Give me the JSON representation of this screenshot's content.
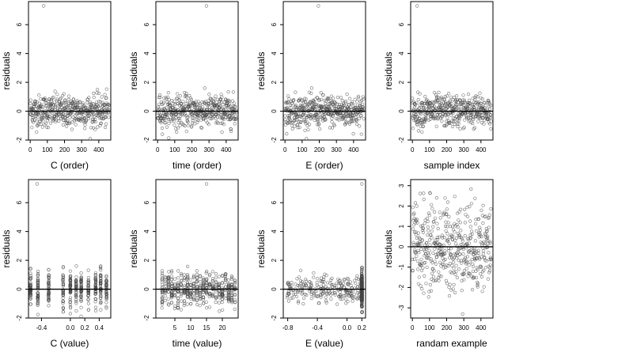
{
  "figure": {
    "residuals_label": "residuals",
    "panel_xlabels": [
      "C (order)",
      "time (order)",
      "E (order)",
      "sample index",
      "C (value)",
      "time (value)",
      "E (value)",
      "randam example"
    ]
  },
  "chart_data": [
    {
      "type": "scatter",
      "xlabel": "C (order)",
      "ylabel": "residuals",
      "xlim": [
        -10,
        470
      ],
      "ylim": [
        -2,
        7.6
      ],
      "xticks": [
        0,
        100,
        200,
        300,
        400
      ],
      "xticklabels": [
        "0",
        "100",
        "200",
        "300",
        "400"
      ],
      "yticks": [
        -2,
        0,
        2,
        4,
        6
      ],
      "yticklabels": [
        "-2",
        "0",
        "2",
        "4",
        "6"
      ],
      "hline": 0,
      "n_points": 460,
      "x_pattern": "index",
      "outliers": [
        {
          "x": 78,
          "y": 7.3
        }
      ]
    },
    {
      "type": "scatter",
      "xlabel": "time (order)",
      "ylabel": "residuals",
      "xlim": [
        -10,
        470
      ],
      "ylim": [
        -2,
        7.6
      ],
      "xticks": [
        0,
        100,
        200,
        300,
        400
      ],
      "xticklabels": [
        "0",
        "100",
        "200",
        "300",
        "400"
      ],
      "yticks": [
        -2,
        0,
        2,
        4,
        6
      ],
      "yticklabels": [
        "-2",
        "0",
        "2",
        "4",
        "6"
      ],
      "hline": 0,
      "n_points": 460,
      "x_pattern": "index",
      "outliers": [
        {
          "x": 285,
          "y": 7.3
        }
      ]
    },
    {
      "type": "scatter",
      "xlabel": "E (order)",
      "ylabel": "residuals",
      "xlim": [
        -10,
        470
      ],
      "ylim": [
        -2,
        7.6
      ],
      "xticks": [
        0,
        100,
        200,
        300,
        400
      ],
      "xticklabels": [
        "0",
        "100",
        "200",
        "300",
        "400"
      ],
      "yticks": [
        -2,
        0,
        2,
        4,
        6
      ],
      "yticklabels": [
        "-2",
        "0",
        "2",
        "4",
        "6"
      ],
      "hline": 0,
      "n_points": 460,
      "x_pattern": "index",
      "outliers": [
        {
          "x": 195,
          "y": 7.3
        }
      ]
    },
    {
      "type": "scatter",
      "xlabel": "sample index",
      "ylabel": "residuals",
      "xlim": [
        -10,
        470
      ],
      "ylim": [
        -2,
        7.6
      ],
      "xticks": [
        0,
        100,
        200,
        300,
        400
      ],
      "xticklabels": [
        "0",
        "100",
        "200",
        "300",
        "400"
      ],
      "yticks": [
        -2,
        0,
        2,
        4,
        6
      ],
      "yticklabels": [
        "-2",
        "0",
        "2",
        "4",
        "6"
      ],
      "hline": 0,
      "n_points": 460,
      "x_pattern": "index",
      "outliers": [
        {
          "x": 28,
          "y": 7.3
        }
      ]
    },
    {
      "type": "scatter",
      "xlabel": "C (value)",
      "ylabel": "residuals",
      "xlim": [
        -0.58,
        0.56
      ],
      "ylim": [
        -2,
        7.6
      ],
      "xticks": [
        -0.4,
        0.0,
        0.2,
        0.4
      ],
      "xticklabels": [
        "-0.4",
        "0.0",
        "0.2",
        "0.4"
      ],
      "yticks": [
        -2,
        0,
        2,
        4,
        6
      ],
      "yticklabels": [
        "-2",
        "0",
        "2",
        "4",
        "6"
      ],
      "hline": 0,
      "n_points": 460,
      "x_pattern": "clusters",
      "x_clusters": [
        -0.55,
        -0.45,
        -0.3,
        -0.1,
        0.0,
        0.08,
        0.15,
        0.25,
        0.35,
        0.42,
        0.5
      ],
      "outliers": [
        {
          "x": -0.46,
          "y": 7.3
        }
      ]
    },
    {
      "type": "scatter",
      "xlabel": "time (value)",
      "ylabel": "residuals",
      "xlim": [
        -1,
        25
      ],
      "ylim": [
        -2,
        7.6
      ],
      "xticks": [
        5,
        10,
        15,
        20
      ],
      "xticklabels": [
        "5",
        "10",
        "15",
        "20"
      ],
      "yticks": [
        -2,
        0,
        2,
        4,
        6
      ],
      "yticklabels": [
        "-2",
        "0",
        "2",
        "4",
        "6"
      ],
      "hline": 0,
      "n_points": 460,
      "x_pattern": "clusters",
      "x_clusters": [
        1,
        2,
        3,
        4,
        5,
        6,
        7,
        8,
        9,
        10,
        11,
        12,
        13,
        14,
        15,
        16,
        17,
        18,
        19,
        20,
        21,
        22,
        23,
        24
      ],
      "outliers": [
        {
          "x": 15,
          "y": 7.3
        }
      ]
    },
    {
      "type": "scatter",
      "xlabel": "E (value)",
      "ylabel": "residuals",
      "xlim": [
        -0.86,
        0.25
      ],
      "ylim": [
        -2,
        7.6
      ],
      "xticks": [
        -0.8,
        -0.4,
        0.0,
        0.2
      ],
      "xticklabels": [
        "-0.8",
        "-0.4",
        "0.0",
        "0.2"
      ],
      "yticks": [
        -2,
        0,
        2,
        4,
        6
      ],
      "yticklabels": [
        "-2",
        "0",
        "2",
        "4",
        "6"
      ],
      "hline": 0,
      "n_points": 460,
      "x_pattern": "skewed_stack",
      "stack_x": 0.2,
      "outliers": [
        {
          "x": 0.2,
          "y": 7.3
        }
      ]
    },
    {
      "type": "scatter",
      "xlabel": "randam example",
      "ylabel": "residuals",
      "xlim": [
        -10,
        470
      ],
      "ylim": [
        -3.5,
        3.3
      ],
      "xticks": [
        0,
        100,
        200,
        300,
        400
      ],
      "xticklabels": [
        "0",
        "100",
        "200",
        "300",
        "400"
      ],
      "yticks": [
        -3,
        -2,
        -1,
        0,
        1,
        2,
        3
      ],
      "yticklabels": [
        "-3",
        "-2",
        "-1",
        "0",
        "1",
        "2",
        "3"
      ],
      "hline": 0,
      "n_points": 460,
      "x_pattern": "index_wide",
      "outliers": []
    }
  ]
}
